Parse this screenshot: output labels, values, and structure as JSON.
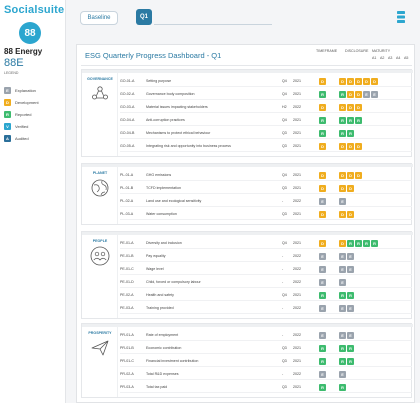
{
  "app": {
    "brand": "Socialsuite"
  },
  "company": {
    "logo_text": "88",
    "name": "88 Energy",
    "code": "88E"
  },
  "legend": {
    "title": "LEGEND",
    "items": [
      {
        "code": "E",
        "label": "Explanation",
        "color": "#9aa3ad"
      },
      {
        "code": "D",
        "label": "Development",
        "color": "#f0ad1e"
      },
      {
        "code": "R",
        "label": "Reported",
        "color": "#3dbb6e"
      },
      {
        "code": "V",
        "label": "Verified",
        "color": "#2ca6cf"
      },
      {
        "code": "A",
        "label": "Audited",
        "color": "#2b6f9a"
      }
    ]
  },
  "tabs": {
    "baseline": "Baseline",
    "q1": "Q1"
  },
  "dashboard": {
    "title": "ESG Quarterly Progress Dashboard - Q1",
    "headers": {
      "timeframe": "TIMEFRAME",
      "disclosure": "DISCLOSURE",
      "maturity": "MATURITY",
      "levels": [
        "A1",
        "A2",
        "A3",
        "A4",
        "A5"
      ]
    }
  },
  "sections": [
    {
      "name": "GOVERNANCE",
      "icon": "governance-people-icon",
      "rows": [
        {
          "id": "GO-01-A",
          "desc": "Setting purpose",
          "tf": "Q4",
          "yr": "2021",
          "disc": "D",
          "mat": [
            "D",
            "D",
            "D",
            "D",
            "D"
          ]
        },
        {
          "id": "GO-02-A",
          "desc": "Governance body composition",
          "tf": "Q4",
          "yr": "2021",
          "disc": "R",
          "mat": [
            "R",
            "D",
            "D",
            "E",
            "E"
          ]
        },
        {
          "id": "GO-03-A",
          "desc": "Material issues impacting stakeholders",
          "tf": "H2",
          "yr": "2022",
          "disc": "D",
          "mat": [
            "D",
            "D",
            "D"
          ]
        },
        {
          "id": "GO-04-A",
          "desc": "Anti-corruption practices",
          "tf": "Q4",
          "yr": "2021",
          "disc": "R",
          "mat": [
            "R",
            "R",
            "R"
          ]
        },
        {
          "id": "GO-04-B",
          "desc": "Mechanisms to protect ethical behaviour",
          "tf": "Q3",
          "yr": "2021",
          "disc": "R",
          "mat": [
            "R",
            "R"
          ]
        },
        {
          "id": "GO-05-A",
          "desc": "Integrating risk and opportunity into business process",
          "tf": "Q3",
          "yr": "2021",
          "disc": "D",
          "mat": [
            "D",
            "D",
            "D"
          ]
        }
      ]
    },
    {
      "name": "PLANET",
      "icon": "planet-globe-icon",
      "rows": [
        {
          "id": "PL-01-A",
          "desc": "GHG emissions",
          "tf": "Q4",
          "yr": "2021",
          "disc": "D",
          "mat": [
            "D",
            "D",
            "D"
          ]
        },
        {
          "id": "PL-01-B",
          "desc": "TCFD implementation",
          "tf": "Q3",
          "yr": "2021",
          "disc": "D",
          "mat": [
            "D",
            "D"
          ]
        },
        {
          "id": "PL-02-A",
          "desc": "Land use and ecological sensitivity",
          "tf": "-",
          "yr": "2022",
          "disc": "E",
          "mat": [
            "E"
          ]
        },
        {
          "id": "PL-03-A",
          "desc": "Water consumption",
          "tf": "Q3",
          "yr": "2021",
          "disc": "D",
          "mat": [
            "D",
            "D"
          ]
        }
      ]
    },
    {
      "name": "PEOPLE",
      "icon": "people-group-icon",
      "rows": [
        {
          "id": "PE-01-A",
          "desc": "Diversity and inclusion",
          "tf": "Q4",
          "yr": "2021",
          "disc": "D",
          "mat": [
            "D",
            "R",
            "R",
            "R",
            "R"
          ]
        },
        {
          "id": "PE-01-B",
          "desc": "Pay equality",
          "tf": "-",
          "yr": "2022",
          "disc": "E",
          "mat": [
            "E",
            "E"
          ]
        },
        {
          "id": "PE-01-C",
          "desc": "Wage level",
          "tf": "-",
          "yr": "2022",
          "disc": "E",
          "mat": [
            "E",
            "E"
          ]
        },
        {
          "id": "PE-01-D",
          "desc": "Child, forced or compulsory labour",
          "tf": "-",
          "yr": "2022",
          "disc": "E",
          "mat": [
            "E"
          ]
        },
        {
          "id": "PE-02-A",
          "desc": "Health and safety",
          "tf": "Q4",
          "yr": "2021",
          "disc": "R",
          "mat": [
            "R",
            "R"
          ]
        },
        {
          "id": "PE-03-A",
          "desc": "Training provided",
          "tf": "-",
          "yr": "2022",
          "disc": "E",
          "mat": [
            "E",
            "E"
          ]
        }
      ]
    },
    {
      "name": "PROSPERITY",
      "icon": "prosperity-plane-icon",
      "rows": [
        {
          "id": "PR-01-A",
          "desc": "Rate of employment",
          "tf": "-",
          "yr": "2022",
          "disc": "E",
          "mat": [
            "E",
            "E"
          ]
        },
        {
          "id": "PR-01-B",
          "desc": "Economic contribution",
          "tf": "Q3",
          "yr": "2021",
          "disc": "R",
          "mat": [
            "R",
            "R"
          ]
        },
        {
          "id": "PR-01-C",
          "desc": "Financial investment contribution",
          "tf": "Q3",
          "yr": "2021",
          "disc": "R",
          "mat": [
            "R",
            "R"
          ]
        },
        {
          "id": "PR-02-A",
          "desc": "Total R&D expenses",
          "tf": "-",
          "yr": "2022",
          "disc": "E",
          "mat": [
            "E"
          ]
        },
        {
          "id": "PR-03-A",
          "desc": "Total tax paid",
          "tf": "Q3",
          "yr": "2021",
          "disc": "R",
          "mat": [
            "R"
          ]
        }
      ]
    }
  ]
}
